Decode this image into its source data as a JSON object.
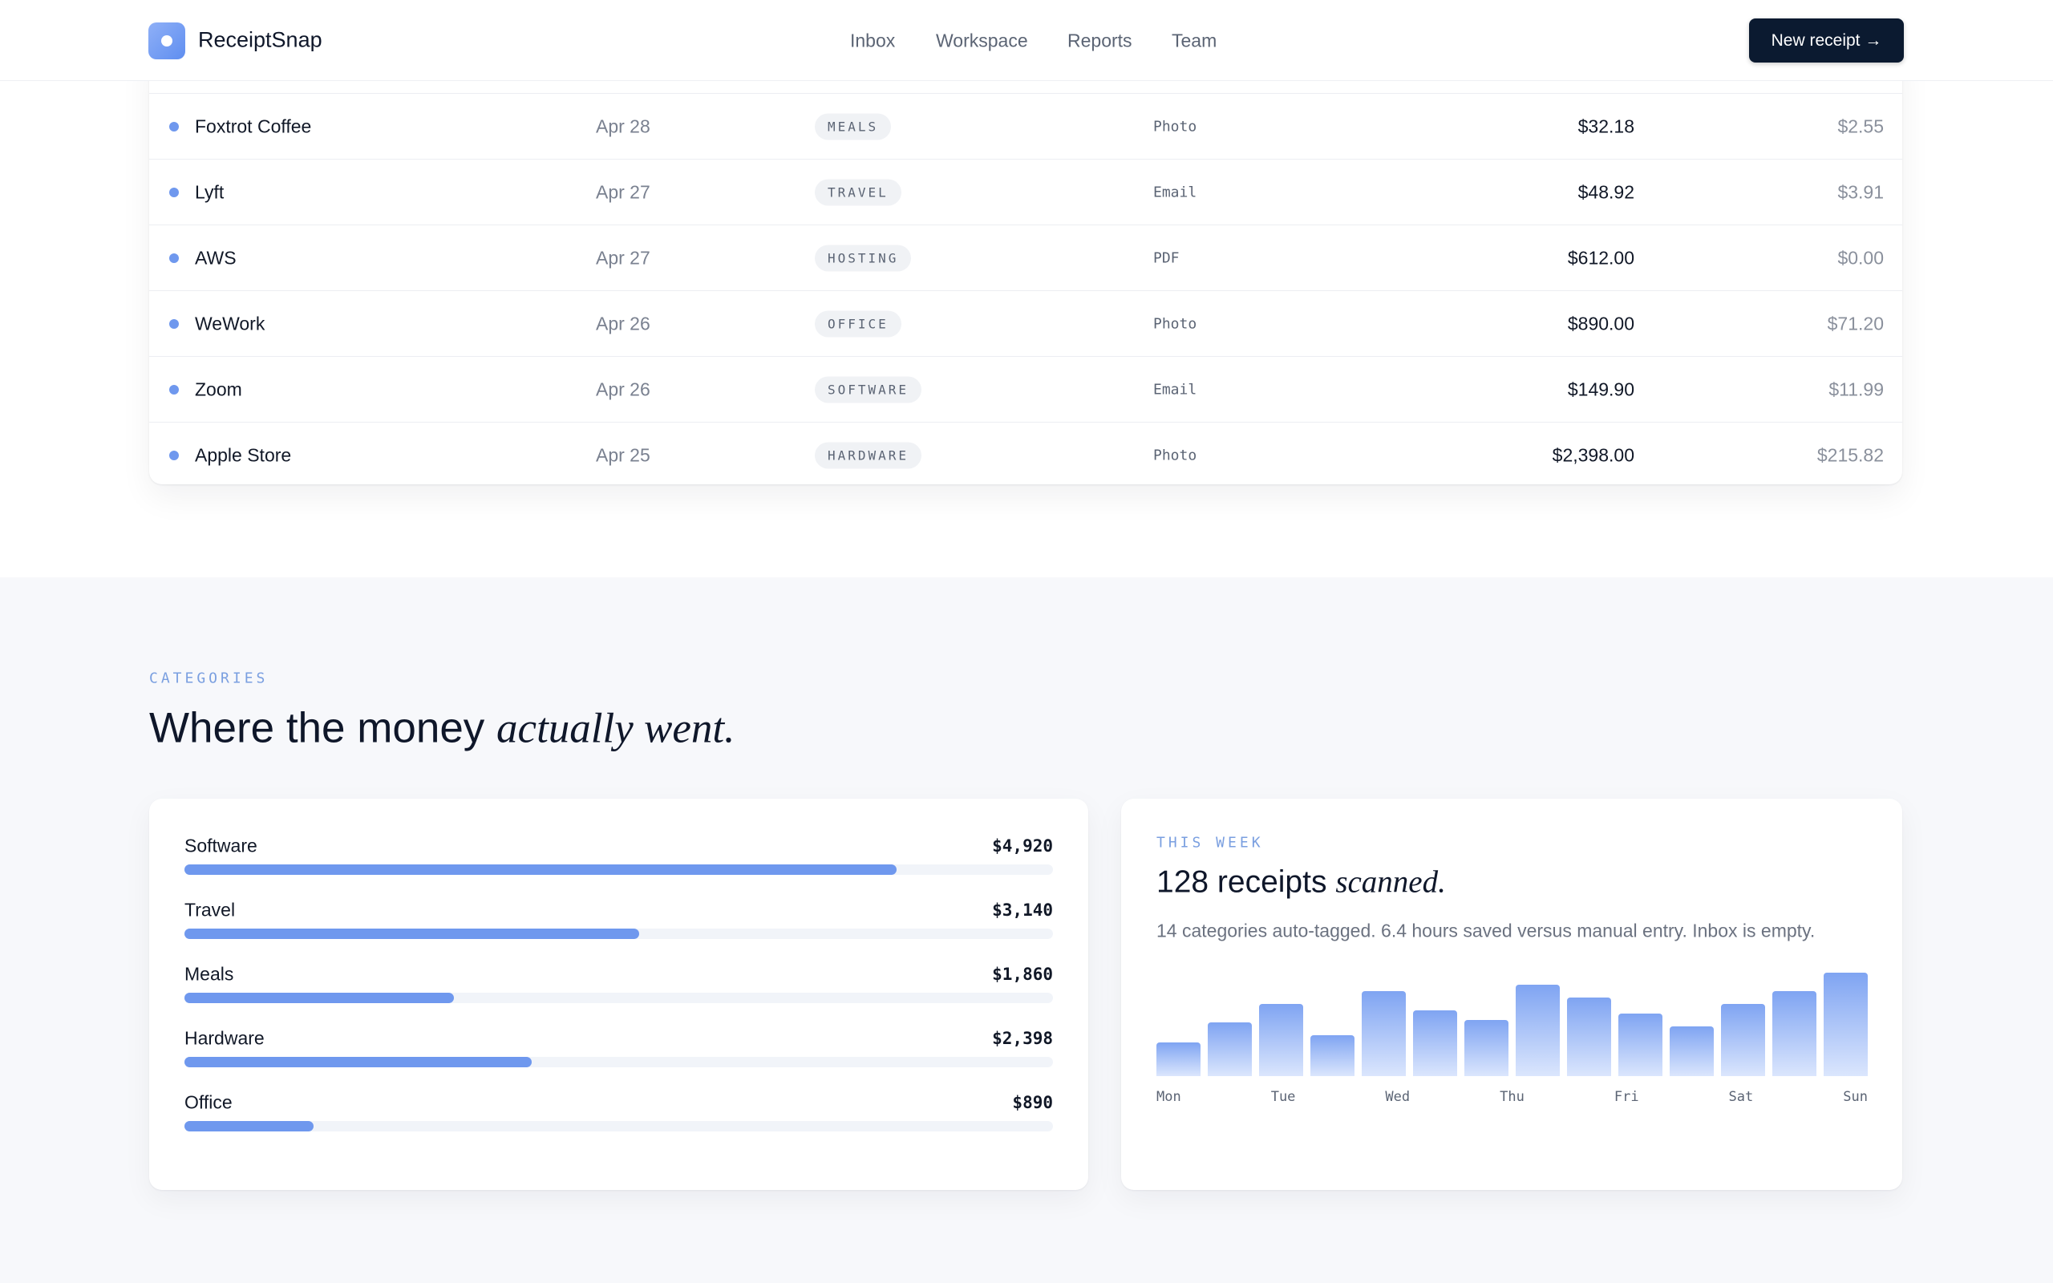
{
  "nav": {
    "brand": "ReceiptSnap",
    "links": [
      "Inbox",
      "Workspace",
      "Reports",
      "Team"
    ],
    "button": "New receipt →"
  },
  "table": {
    "rows": [
      [
        "Foxtrot Coffee",
        "Apr 28",
        "MEALS",
        "Photo",
        "$32.18",
        "$2.55"
      ],
      [
        "Lyft",
        "Apr 27",
        "TRAVEL",
        "Email",
        "$48.92",
        "$3.91"
      ],
      [
        "AWS",
        "Apr 27",
        "HOSTING",
        "PDF",
        "$612.00",
        "$0.00"
      ],
      [
        "WeWork",
        "Apr 26",
        "OFFICE",
        "Photo",
        "$890.00",
        "$71.20"
      ],
      [
        "Zoom",
        "Apr 26",
        "SOFTWARE",
        "Email",
        "$149.90",
        "$11.99"
      ],
      [
        "Apple Store",
        "Apr 25",
        "HARDWARE",
        "Photo",
        "$2,398.00",
        "$215.82"
      ]
    ]
  },
  "categories": {
    "kicker": "CATEGORIES",
    "title": "Where the money ",
    "title_italic": "actually went.",
    "items": [
      {
        "name": "Software",
        "value": 4920,
        "value_label": "$4,920"
      },
      {
        "name": "Travel",
        "value": 3140,
        "value_label": "$3,140"
      },
      {
        "name": "Meals",
        "value": 1860,
        "value_label": "$1,860"
      },
      {
        "name": "Hardware",
        "value": 2398,
        "value_label": "$2,398"
      },
      {
        "name": "Office",
        "value": 890,
        "value_label": "$890"
      }
    ]
  },
  "week": {
    "kicker": "THIS WEEK",
    "title": "128 receipts ",
    "title_italic": "scanned.",
    "description": "14 categories auto-tagged. 6.4 hours saved versus manual entry. Inbox is empty.",
    "bar_values": [
      26,
      41,
      55,
      31,
      65,
      50,
      43,
      70,
      60,
      48,
      38,
      55,
      65,
      79
    ],
    "day_labels": [
      "Mon",
      "Tue",
      "Wed",
      "Thu",
      "Fri",
      "Sat",
      "Sun"
    ]
  }
}
